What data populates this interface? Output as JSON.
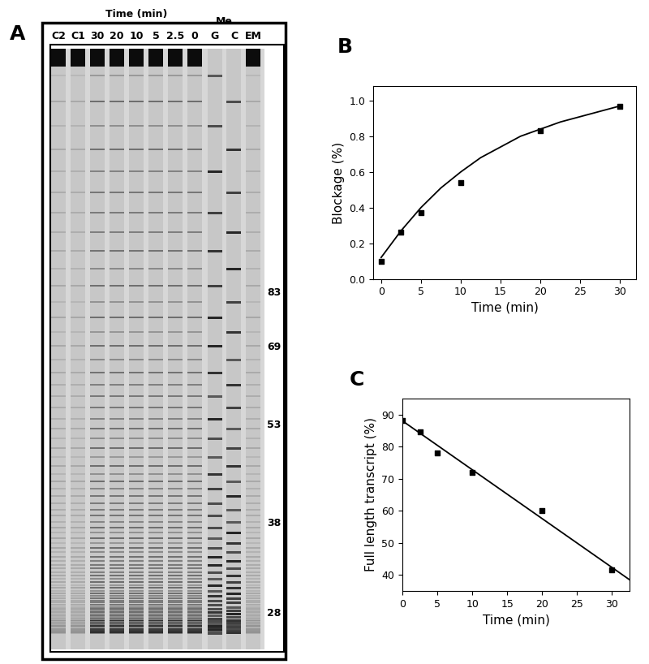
{
  "panel_labels": [
    "A",
    "B",
    "C"
  ],
  "gel": {
    "time_header": "Time (min)",
    "lanes": [
      "C2",
      "C1",
      "30",
      "20",
      "10",
      "5",
      "2.5",
      "0",
      "G",
      "C",
      "EM"
    ],
    "methylation_header": "Me",
    "size_markers": [
      83,
      69,
      53,
      38,
      28
    ]
  },
  "chart_data": [
    {
      "type": "scatter",
      "x_label": "Time (min)",
      "y_label": "Blockage (%)",
      "xlim": [
        -1,
        32
      ],
      "ylim": [
        0,
        1.08
      ],
      "xticks": [
        0,
        5,
        10,
        15,
        20,
        25,
        30
      ],
      "yticks": [
        {
          "value": 0,
          "label": "0.0"
        },
        {
          "value": 0.2,
          "label": "0.2"
        },
        {
          "value": 0.4,
          "label": "0.4"
        },
        {
          "value": 0.6,
          "label": "0.6"
        },
        {
          "value": 0.8,
          "label": "0.8"
        },
        {
          "value": 1.0,
          "label": "1.0"
        }
      ],
      "series": [
        {
          "type": "scatter",
          "marker": "square",
          "color": "#000000",
          "x": [
            0,
            2.5,
            5,
            10,
            20,
            30
          ],
          "values": [
            0.1,
            0.26,
            0.37,
            0.54,
            0.83,
            0.97
          ]
        },
        {
          "type": "line",
          "line_style": "solid",
          "color": "#000000",
          "x": [
            0,
            2.5,
            5,
            7.5,
            10,
            12.5,
            15,
            17.5,
            20,
            22.5,
            25,
            27.5,
            30
          ],
          "values": [
            0.12,
            0.27,
            0.4,
            0.51,
            0.6,
            0.68,
            0.74,
            0.8,
            0.84,
            0.88,
            0.91,
            0.94,
            0.97
          ]
        }
      ]
    },
    {
      "type": "scatter",
      "x_label": "Time (min)",
      "y_label": "Full length transcript (%)",
      "xlim": [
        0,
        32.5
      ],
      "ylim": [
        35,
        95
      ],
      "xticks": [
        0,
        5,
        10,
        15,
        20,
        25,
        30
      ],
      "yticks": [
        40,
        50,
        60,
        70,
        80,
        90
      ],
      "series": [
        {
          "type": "scatter",
          "marker": "square",
          "color": "#000000",
          "x": [
            0,
            2.5,
            5,
            10,
            20,
            30
          ],
          "values": [
            88,
            84.5,
            78,
            72,
            60,
            41.5
          ]
        },
        {
          "type": "line",
          "line_style": "solid",
          "color": "#000000",
          "x": [
            0,
            32.5
          ],
          "values": [
            88,
            38.5
          ]
        }
      ]
    }
  ]
}
